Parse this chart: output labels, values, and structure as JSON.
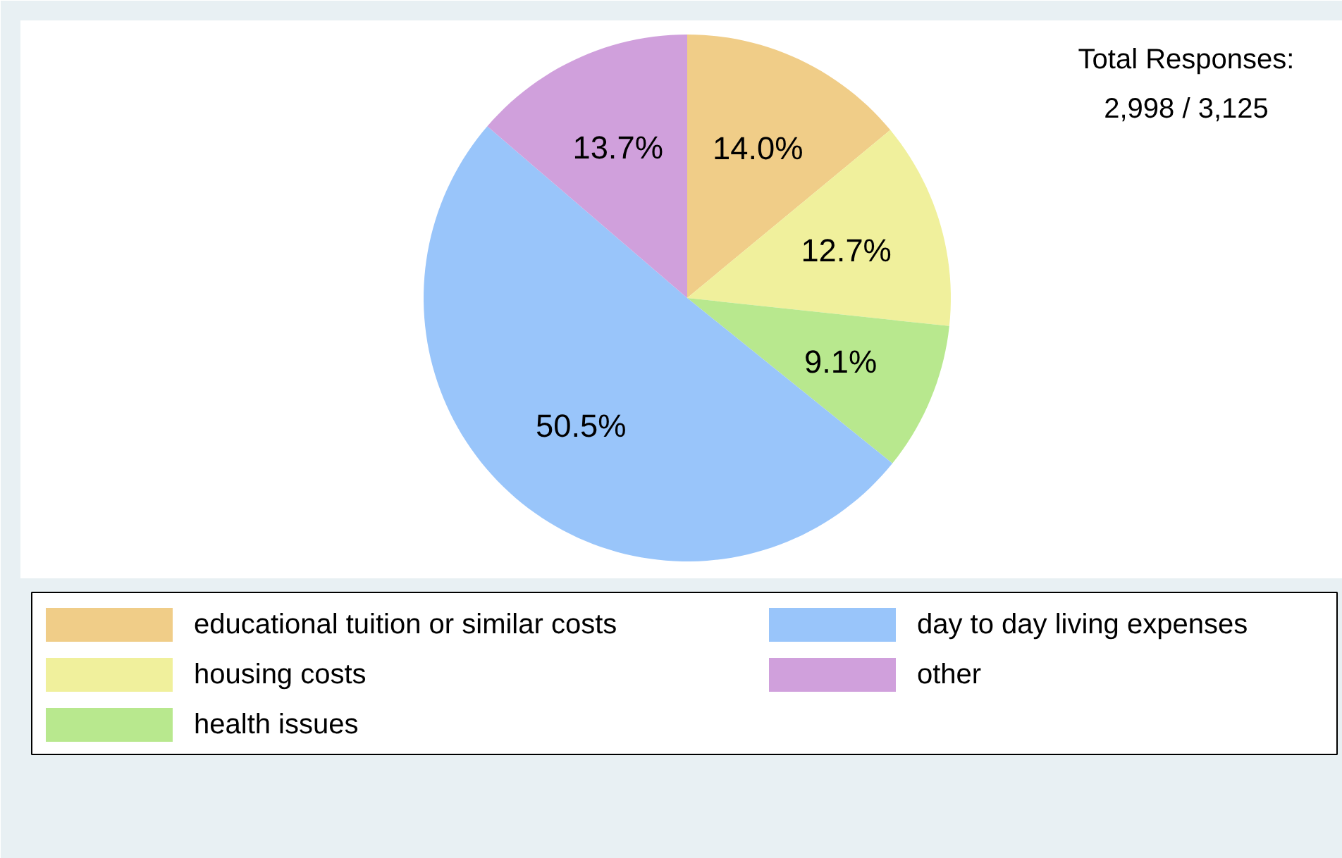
{
  "chart_data": {
    "type": "pie",
    "categories": [
      "educational tuition or similar costs",
      "housing costs",
      "health issues",
      "day to day living expenses",
      "other"
    ],
    "values": [
      14.0,
      12.7,
      9.1,
      50.5,
      13.7
    ],
    "colors": [
      "#f0cd88",
      "#f0f09c",
      "#b8e88e",
      "#99c5fa",
      "#d0a0dc"
    ],
    "value_labels": [
      "14.0%",
      "12.7%",
      "9.1%",
      "50.5%",
      "13.7%"
    ],
    "legend": "bottom",
    "annotations": [
      "Total Responses:\n2,998 / 3,125"
    ]
  }
}
